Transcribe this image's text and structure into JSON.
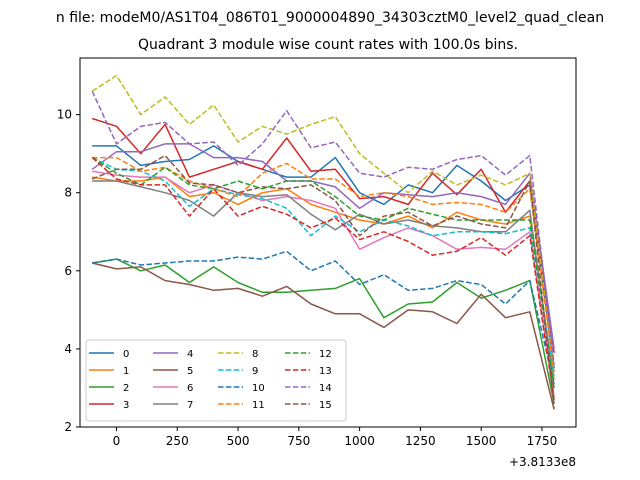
{
  "chart_data": {
    "type": "line",
    "suptitle": "n file: modeM0/AS1T04_086T01_9000004890_34303cztM0_level2_quad_clean",
    "title": "Quadrant 3 module wise count rates with 100.0s bins.",
    "xlabel": "",
    "ylabel": "",
    "offset_label": "+3.8133e8",
    "xlim": [
      -150,
      1890
    ],
    "ylim": [
      2,
      11.45
    ],
    "xticks": [
      0,
      250,
      500,
      750,
      1000,
      1250,
      1500,
      1750
    ],
    "yticks": [
      2,
      4,
      6,
      8,
      10
    ],
    "legend_position": "lower-left",
    "x": [
      -100,
      0,
      100,
      200,
      300,
      400,
      500,
      600,
      700,
      800,
      900,
      1000,
      1100,
      1200,
      1300,
      1400,
      1500,
      1600,
      1700,
      1800
    ],
    "series": [
      {
        "name": "0",
        "color": "#1f77b4",
        "dash": "solid",
        "values": [
          9.2,
          9.2,
          8.7,
          8.8,
          8.85,
          9.2,
          8.8,
          8.6,
          8.4,
          8.4,
          8.9,
          8.0,
          7.7,
          8.2,
          8.0,
          8.7,
          8.3,
          7.8,
          8.2,
          3.5
        ]
      },
      {
        "name": "1",
        "color": "#ff7f0e",
        "dash": "solid",
        "values": [
          8.4,
          8.3,
          8.3,
          8.4,
          7.9,
          8.0,
          7.7,
          8.0,
          8.1,
          7.7,
          7.5,
          7.3,
          7.2,
          7.4,
          7.1,
          7.5,
          7.3,
          7.2,
          7.4,
          3.2
        ]
      },
      {
        "name": "2",
        "color": "#2ca02c",
        "dash": "solid",
        "values": [
          6.2,
          6.3,
          6.0,
          6.15,
          5.7,
          6.1,
          5.7,
          5.45,
          5.45,
          5.5,
          5.55,
          5.8,
          4.8,
          5.15,
          5.2,
          5.7,
          5.3,
          5.5,
          5.75,
          2.6
        ]
      },
      {
        "name": "3",
        "color": "#d62728",
        "dash": "solid",
        "values": [
          9.9,
          9.7,
          9.0,
          9.75,
          8.4,
          8.6,
          8.8,
          8.6,
          9.4,
          8.55,
          8.6,
          7.85,
          7.9,
          7.7,
          8.5,
          7.95,
          8.6,
          7.5,
          8.3,
          3.9
        ]
      },
      {
        "name": "4",
        "color": "#9467bd",
        "dash": "solid",
        "values": [
          8.6,
          9.05,
          9.05,
          9.25,
          9.25,
          8.9,
          8.9,
          8.8,
          8.3,
          8.3,
          8.15,
          7.6,
          8.0,
          7.95,
          7.9,
          8.0,
          7.9,
          7.7,
          8.5,
          4.0
        ]
      },
      {
        "name": "5",
        "color": "#8c564b",
        "dash": "solid",
        "values": [
          6.2,
          6.05,
          6.1,
          5.75,
          5.65,
          5.5,
          5.55,
          5.35,
          5.6,
          5.15,
          4.9,
          4.9,
          4.55,
          5.0,
          4.95,
          4.65,
          5.4,
          4.8,
          4.95,
          2.45
        ]
      },
      {
        "name": "6",
        "color": "#e377c2",
        "dash": "solid",
        "values": [
          8.55,
          8.45,
          8.4,
          8.4,
          8.0,
          8.2,
          8.0,
          7.8,
          7.9,
          7.8,
          7.6,
          6.55,
          6.85,
          7.1,
          6.9,
          6.55,
          6.6,
          6.55,
          7.0,
          2.8
        ]
      },
      {
        "name": "7",
        "color": "#7f7f7f",
        "dash": "solid",
        "values": [
          8.3,
          8.3,
          8.15,
          8.0,
          7.8,
          7.4,
          8.0,
          7.9,
          7.95,
          7.45,
          7.05,
          7.45,
          7.2,
          7.3,
          7.15,
          7.1,
          7.0,
          7.0,
          7.55,
          3.0
        ]
      },
      {
        "name": "8",
        "color": "#bcbd22",
        "dash": "dashed",
        "values": [
          10.6,
          11.0,
          10.0,
          10.45,
          9.75,
          10.25,
          9.3,
          9.7,
          9.5,
          9.75,
          9.95,
          9.0,
          8.5,
          8.0,
          8.55,
          8.2,
          8.45,
          8.2,
          8.5,
          3.4
        ]
      },
      {
        "name": "9",
        "color": "#17becf",
        "dash": "dashed",
        "values": [
          8.9,
          8.6,
          8.55,
          8.3,
          7.65,
          8.1,
          7.95,
          7.85,
          7.6,
          6.9,
          7.4,
          7.0,
          7.3,
          7.15,
          6.9,
          7.0,
          7.0,
          6.95,
          7.1,
          3.3
        ]
      },
      {
        "name": "10",
        "color": "#1f77b4",
        "dash": "dashed",
        "values": [
          6.2,
          6.3,
          6.15,
          6.2,
          6.25,
          6.25,
          6.35,
          6.3,
          6.5,
          6.0,
          6.25,
          5.65,
          5.9,
          5.5,
          5.55,
          5.75,
          5.65,
          5.15,
          5.75,
          3.1
        ]
      },
      {
        "name": "11",
        "color": "#ff7f0e",
        "dash": "dashed",
        "values": [
          8.9,
          8.9,
          8.55,
          8.65,
          8.3,
          8.1,
          7.9,
          8.5,
          8.75,
          8.35,
          8.35,
          7.9,
          8.0,
          7.9,
          7.7,
          7.75,
          7.7,
          7.5,
          8.1,
          3.4
        ]
      },
      {
        "name": "12",
        "color": "#2ca02c",
        "dash": "dashed",
        "values": [
          8.9,
          8.5,
          8.2,
          8.65,
          8.2,
          8.1,
          8.3,
          8.1,
          8.3,
          8.3,
          7.9,
          7.4,
          7.3,
          7.6,
          7.45,
          7.3,
          7.3,
          7.3,
          7.3,
          3.0
        ]
      },
      {
        "name": "13",
        "color": "#d62728",
        "dash": "dashed",
        "values": [
          8.9,
          8.35,
          8.2,
          8.2,
          7.4,
          8.1,
          7.4,
          7.65,
          7.45,
          7.1,
          7.35,
          6.8,
          7.0,
          6.75,
          6.4,
          6.5,
          6.85,
          6.4,
          6.9,
          2.7
        ]
      },
      {
        "name": "14",
        "color": "#9467bd",
        "dash": "dashed",
        "values": [
          10.6,
          9.25,
          9.7,
          9.8,
          9.25,
          9.3,
          8.7,
          9.25,
          10.1,
          9.15,
          9.3,
          8.5,
          8.4,
          8.65,
          8.6,
          8.85,
          8.95,
          8.45,
          8.95,
          3.6
        ]
      },
      {
        "name": "15",
        "color": "#8c564b",
        "dash": "dashed",
        "values": [
          8.35,
          8.6,
          8.6,
          8.95,
          8.25,
          8.2,
          8.0,
          8.15,
          8.1,
          8.2,
          7.8,
          6.9,
          7.4,
          7.5,
          7.15,
          7.4,
          7.2,
          7.1,
          8.3,
          2.5
        ]
      }
    ]
  }
}
